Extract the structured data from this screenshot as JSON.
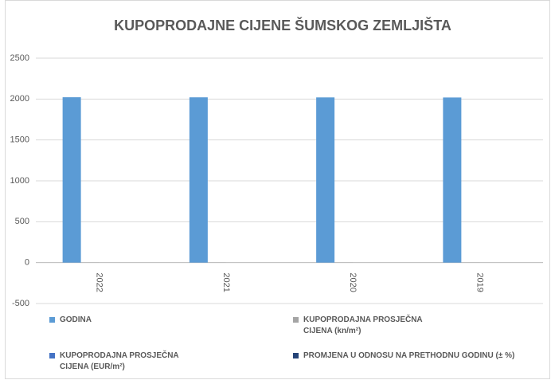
{
  "chart_data": {
    "type": "bar",
    "title": "KUPOPRODAJNE CIJENE ŠUMSKOG ZEMLJIŠTA",
    "categories": [
      "2022",
      "2021",
      "2020",
      "2019"
    ],
    "series": [
      {
        "name": "GODINA",
        "color": "#5b9bd5",
        "values": [
          2022,
          2021,
          2020,
          2019
        ]
      },
      {
        "name": "KUPOPRODAJNA PROSJEČNA CIJENA (kn/m²)",
        "color": "#a5a5a5",
        "values": [
          1,
          1,
          1,
          1
        ]
      },
      {
        "name": "KUPOPRODAJNA PROSJEČNA CIJENA (EUR/m²)",
        "color": "#4472c4",
        "values": [
          0,
          0,
          0,
          0
        ]
      },
      {
        "name": "PROMJENA U ODNOSU NA PRETHODNU GODINU (± %)",
        "color": "#264478",
        "values": [
          0,
          0,
          0,
          0
        ]
      }
    ],
    "ylim": [
      -500,
      2500
    ],
    "yticks": [
      -500,
      0,
      500,
      1000,
      1500,
      2000,
      2500
    ],
    "grid": true
  }
}
